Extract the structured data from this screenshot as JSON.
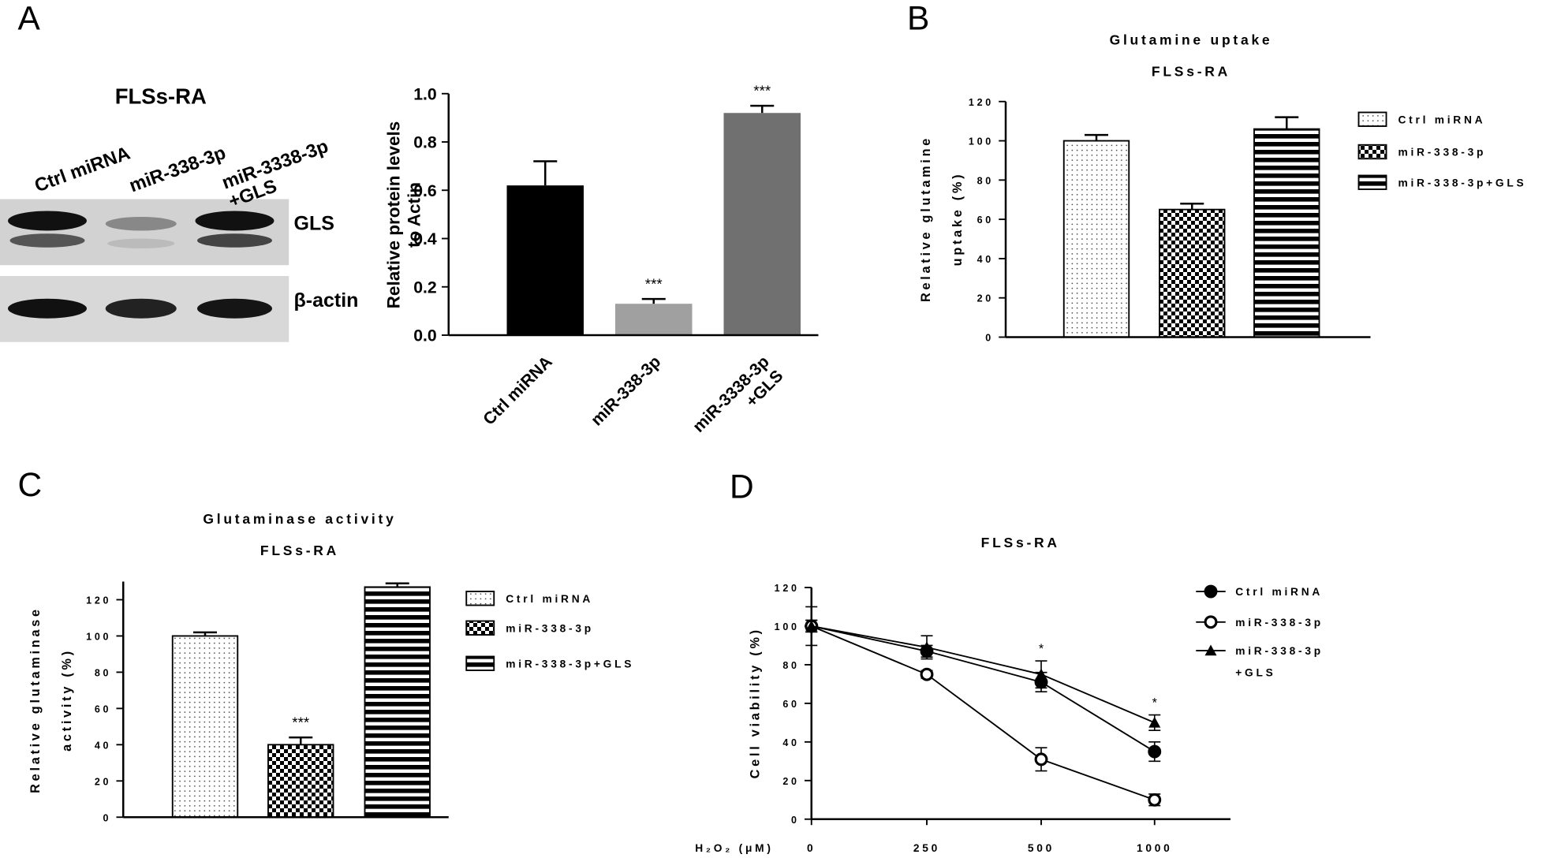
{
  "panel_labels": [
    "A",
    "B",
    "C",
    "D"
  ],
  "blot": {
    "title": "FLSs-RA",
    "lanes": [
      "Ctrl miRNA",
      "miR-338-3p",
      [
        "miR-3338-3p",
        "+GLS"
      ]
    ],
    "rows": [
      "GLS",
      "β-actin"
    ]
  },
  "chart_data": [
    {
      "type": "bar",
      "ylabel": [
        "Relative protein levels",
        "to Actin"
      ],
      "categories": [
        "Ctrl miRNA",
        "miR-338-3p",
        [
          "miR-3338-3p",
          "+GLS"
        ]
      ],
      "values": [
        0.62,
        0.13,
        0.92
      ],
      "errors": [
        0.1,
        0.02,
        0.03
      ],
      "colors": [
        "#000000",
        "#a0a0a0",
        "#707070"
      ],
      "significance": [
        null,
        "***",
        "***"
      ],
      "ylim": [
        0,
        1.0
      ],
      "yticks": [
        {
          "value": 0,
          "label": "0.0"
        },
        0.2,
        0.4,
        0.6,
        0.8,
        {
          "value": 1.0,
          "label": "1.0"
        }
      ]
    },
    {
      "type": "bar",
      "title": [
        "Glutamine uptake",
        "FLSs-RA"
      ],
      "ylabel": [
        "Relative glutamine",
        "uptake (%)"
      ],
      "categories": [
        "Ctrl miRNA",
        "miR-338-3p",
        "miR-338-3p+GLS"
      ],
      "values": [
        100,
        65,
        106
      ],
      "errors": [
        3,
        3,
        6
      ],
      "patterns": [
        "dots",
        "checker",
        "stripes"
      ],
      "ylim": [
        0,
        120
      ],
      "yticks": [
        0,
        20,
        40,
        60,
        80,
        100,
        120
      ],
      "legend": "right"
    },
    {
      "type": "bar",
      "title": [
        "Glutaminase activity",
        "FLSs-RA"
      ],
      "ylabel": [
        "Relative glutaminase",
        "activity (%)"
      ],
      "categories": [
        "Ctrl miRNA",
        "miR-338-3p",
        "miR-338-3p+GLS"
      ],
      "values": [
        100,
        40,
        127
      ],
      "errors": [
        2,
        4,
        2
      ],
      "patterns": [
        "dots",
        "checker",
        "stripes"
      ],
      "significance": [
        null,
        "***",
        null
      ],
      "ylim": [
        0,
        130
      ],
      "yticks": [
        0,
        20,
        40,
        60,
        80,
        100,
        120
      ],
      "legend": "right"
    },
    {
      "type": "line",
      "title": "FLSs-RA",
      "ylabel": "Cell viability (%)",
      "xlabel": "H₂O₂ (μM)",
      "categories": [
        "0",
        "250",
        "500",
        "1000"
      ],
      "series": [
        {
          "name": "Ctrl miRNA",
          "color": "#000000",
          "marker": "circle",
          "values": [
            100,
            87,
            71,
            35
          ],
          "errors": [
            10,
            3,
            5,
            5
          ]
        },
        {
          "name": "miR-338-3p",
          "color": "#000000",
          "marker": "open-circle",
          "values": [
            100,
            75,
            31,
            10
          ],
          "errors": [
            3,
            2,
            6,
            3
          ]
        },
        {
          "name": [
            "miR-338-3p",
            "+GLS"
          ],
          "color": "#000000",
          "marker": "triangle",
          "values": [
            100,
            89,
            75,
            50
          ],
          "errors": [
            3,
            6,
            7,
            4
          ]
        }
      ],
      "significance": [
        null,
        null,
        "*",
        "*"
      ],
      "ylim": [
        0,
        120
      ],
      "yticks": [
        0,
        20,
        40,
        60,
        80,
        100,
        120
      ],
      "legend": "right"
    }
  ]
}
